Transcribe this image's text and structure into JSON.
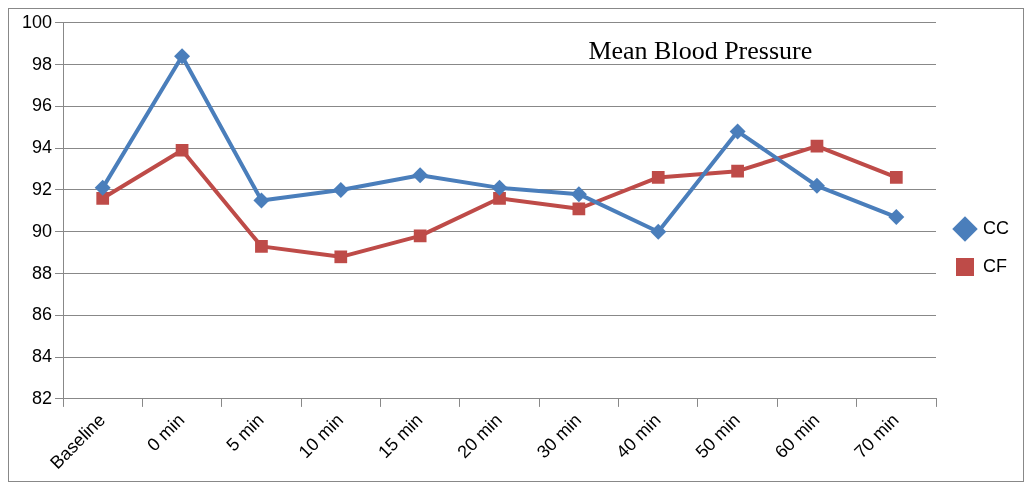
{
  "chart_data": {
    "type": "line",
    "title": "Mean Blood Pressure",
    "categories": [
      "Baseline",
      "0 min",
      "5 min",
      "10 min",
      "15 min",
      "20 min",
      "30 min",
      "40 min",
      "50 min",
      "60 min",
      "70 min"
    ],
    "series": [
      {
        "name": "CC",
        "color": "#4a7ebb",
        "marker": "diamond",
        "values": [
          92.1,
          98.4,
          91.5,
          92.0,
          92.7,
          92.1,
          91.8,
          90.0,
          94.8,
          92.2,
          90.7
        ]
      },
      {
        "name": "CF",
        "color": "#be4b48",
        "marker": "square",
        "values": [
          91.6,
          93.9,
          89.3,
          88.8,
          89.8,
          91.6,
          91.1,
          92.6,
          92.9,
          94.1,
          92.6
        ]
      }
    ],
    "ylim": [
      82,
      100
    ],
    "yticks": [
      82,
      84,
      86,
      88,
      90,
      92,
      94,
      96,
      98,
      100
    ],
    "grid": "y",
    "legend": "right",
    "line_style": "solid"
  }
}
